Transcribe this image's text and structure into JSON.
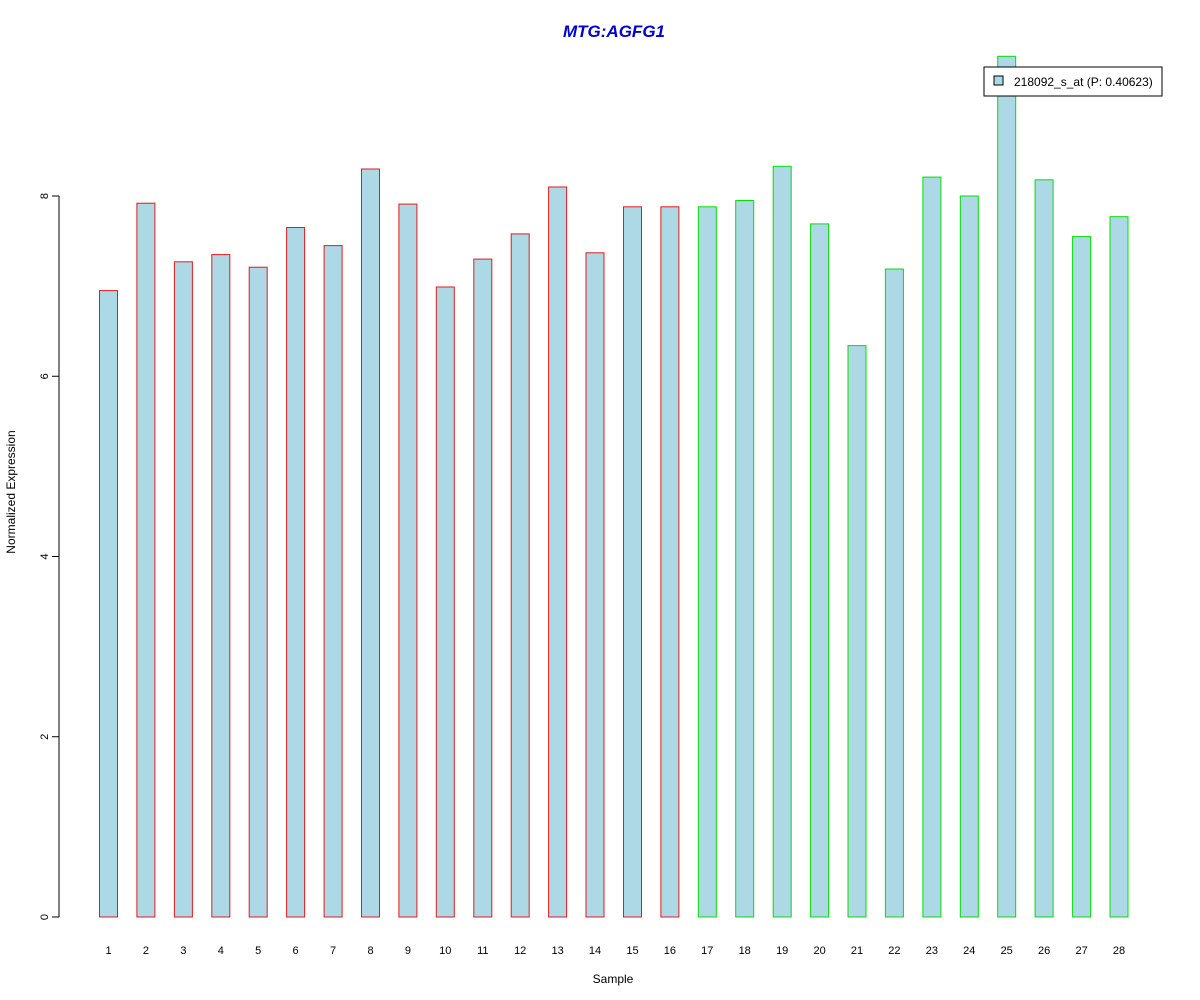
{
  "chart_data": {
    "type": "bar",
    "title": "MTG:AGFG1",
    "xlabel": "Sample",
    "ylabel": "Normalized Expression",
    "categories": [
      "1",
      "2",
      "3",
      "4",
      "5",
      "6",
      "7",
      "8",
      "9",
      "10",
      "11",
      "12",
      "13",
      "14",
      "15",
      "16",
      "17",
      "18",
      "19",
      "20",
      "21",
      "22",
      "23",
      "24",
      "25",
      "26",
      "27",
      "28"
    ],
    "series": [
      {
        "name": "218092_s_at (P: 0.40623)",
        "values": [
          6.95,
          7.92,
          7.27,
          7.35,
          7.21,
          7.65,
          7.45,
          8.3,
          7.91,
          6.99,
          7.3,
          7.58,
          8.1,
          7.37,
          7.88,
          7.88,
          7.88,
          7.95,
          8.33,
          7.69,
          6.34,
          7.19,
          8.21,
          8.0,
          9.55,
          8.18,
          7.55,
          7.77
        ]
      }
    ],
    "groups": [
      1,
      1,
      1,
      1,
      1,
      1,
      1,
      1,
      1,
      1,
      1,
      1,
      1,
      1,
      1,
      1,
      2,
      2,
      2,
      2,
      2,
      2,
      2,
      2,
      2,
      2,
      2,
      2
    ],
    "yticks": [
      0,
      2,
      4,
      6,
      8
    ],
    "ylim": [
      0,
      9.6
    ],
    "grid": false,
    "legend_position": "top-right",
    "colors": {
      "bar_fill": "#add8e6",
      "group1_border": "#e31a1c",
      "group2_border": "#00e000",
      "title": "#0000cc",
      "axis": "#000000"
    }
  }
}
